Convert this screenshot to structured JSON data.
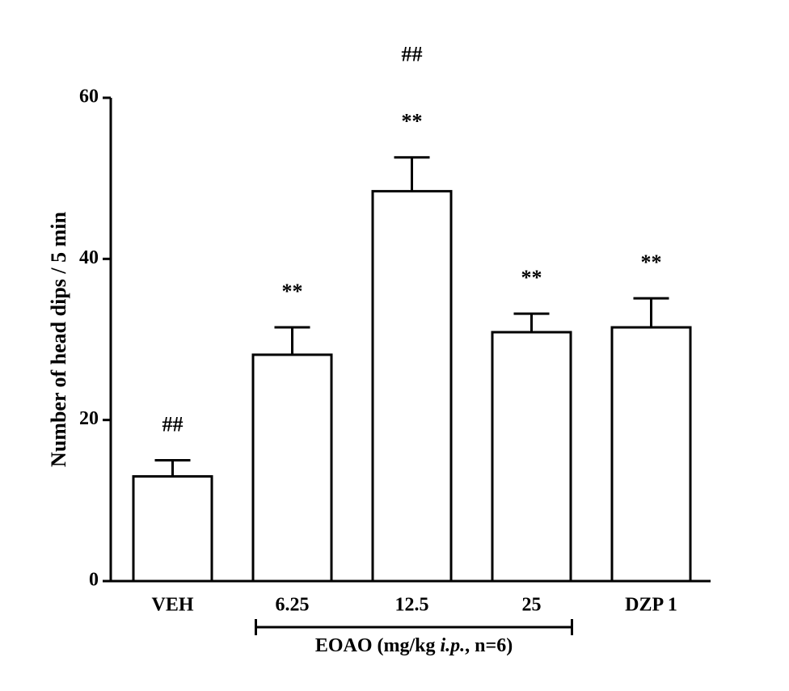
{
  "chart_data": {
    "type": "bar",
    "ylabel": "Number of head dips / 5 min",
    "categories": [
      "VEH",
      "6.25",
      "12.5",
      "25",
      "DZP 1"
    ],
    "values": [
      13,
      28.1,
      48.4,
      30.9,
      31.5
    ],
    "errors": [
      2,
      3.4,
      4.2,
      2.3,
      3.6
    ],
    "annotations": [
      [
        "##"
      ],
      [
        "**"
      ],
      [
        "**",
        "##"
      ],
      [
        "**"
      ],
      [
        "**"
      ]
    ],
    "group_label": [
      "EOAO (mg/kg ",
      "i.p.",
      ", n=6)"
    ],
    "color": "#ffffff",
    "ylim": [
      0,
      60
    ],
    "yticks": [
      0,
      20,
      40,
      60
    ]
  }
}
